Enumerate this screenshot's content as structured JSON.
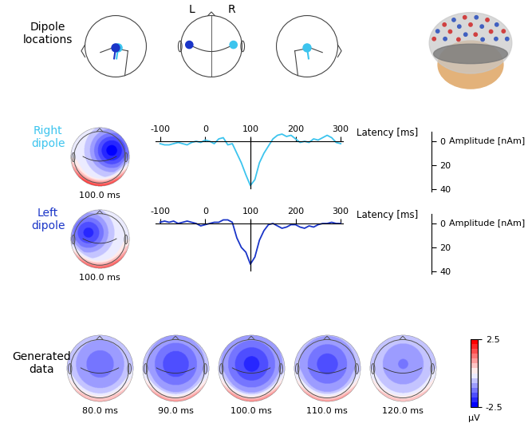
{
  "dipole_locations": {
    "label": "Dipole\nlocations",
    "hemispheres": [
      "L",
      "R"
    ]
  },
  "chart_data": [
    {
      "type": "line",
      "title": "Right\ndipole",
      "color": "#3cc4ee",
      "x": [
        -100,
        -90,
        -80,
        -70,
        -60,
        -50,
        -40,
        -30,
        -20,
        -10,
        0,
        10,
        20,
        30,
        40,
        50,
        60,
        70,
        80,
        90,
        100,
        110,
        120,
        130,
        140,
        150,
        160,
        170,
        180,
        190,
        200,
        210,
        220,
        230,
        240,
        250,
        260,
        270,
        280,
        290,
        300
      ],
      "values": [
        2,
        3,
        3,
        2,
        1,
        2,
        3,
        1,
        0,
        1,
        -1,
        0,
        2,
        -2,
        -3,
        3,
        2,
        10,
        18,
        28,
        37,
        32,
        18,
        10,
        4,
        -2,
        -5,
        -6,
        -4,
        -5,
        -2,
        1,
        0,
        1,
        -2,
        -1,
        -3,
        -5,
        -3,
        1,
        2
      ],
      "xlim": [
        -110,
        305
      ],
      "xticks": [
        -100,
        0,
        100,
        200,
        300
      ],
      "ylim": [
        42,
        -8
      ],
      "yticks": [
        0,
        20,
        40
      ],
      "x_label": "Latency [ms]",
      "y_label": "Amplitude [nAm]",
      "cursor_latency": 100
    },
    {
      "type": "line",
      "title": "Left\ndipole",
      "color": "#1a35c8",
      "x": [
        -100,
        -90,
        -80,
        -70,
        -60,
        -50,
        -40,
        -30,
        -20,
        -10,
        0,
        10,
        20,
        30,
        40,
        50,
        60,
        70,
        80,
        90,
        100,
        110,
        120,
        130,
        140,
        150,
        160,
        170,
        180,
        190,
        200,
        210,
        220,
        230,
        240,
        250,
        260,
        270,
        280,
        290,
        300
      ],
      "values": [
        -1,
        -2,
        -1,
        -2,
        0,
        -1,
        -2,
        -1,
        0,
        2,
        1,
        0,
        -1,
        -1,
        -3,
        -3,
        -1,
        12,
        20,
        24,
        34,
        28,
        14,
        6,
        1,
        0,
        2,
        4,
        3,
        1,
        1,
        3,
        4,
        2,
        3,
        1,
        0,
        0,
        -1,
        0,
        0
      ],
      "xlim": [
        -110,
        305
      ],
      "xticks": [
        -100,
        0,
        100,
        200,
        300
      ],
      "ylim": [
        42,
        -8
      ],
      "yticks": [
        0,
        20,
        40
      ],
      "x_label": "Latency [ms]",
      "y_label": "Amplitude [nAm]",
      "cursor_latency": 100
    }
  ],
  "dipole_maps": [
    {
      "label": "100.0 ms",
      "peak": -2.3
    },
    {
      "label": "100.0 ms",
      "peak": -1.9
    }
  ],
  "generated_data": {
    "label": "Generated\ndata",
    "maps": [
      {
        "label": "80.0 ms",
        "peak": -1.3
      },
      {
        "label": "90.0 ms",
        "peak": -1.7
      },
      {
        "label": "100.0 ms",
        "peak": -1.9
      },
      {
        "label": "110.0 ms",
        "peak": -1.6
      },
      {
        "label": "120.0 ms",
        "peak": -1.1
      }
    ]
  },
  "colorbar": {
    "range": [
      -2.5,
      2.5
    ],
    "ticks": [
      2.5,
      -2.5
    ],
    "label": "µV"
  }
}
